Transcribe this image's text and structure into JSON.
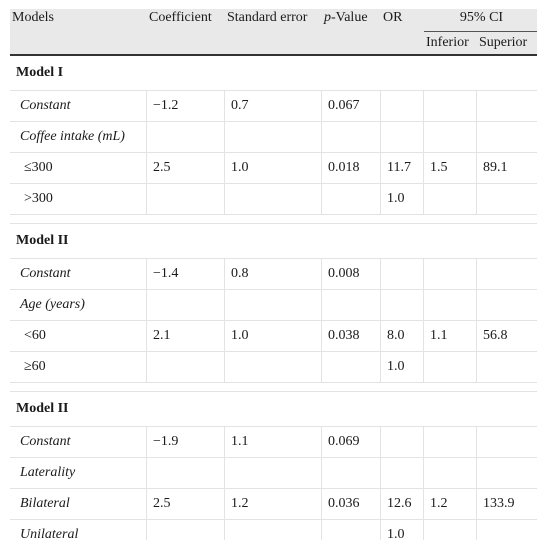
{
  "table": {
    "headers": {
      "models": "Models",
      "coefficient": "Coefficient",
      "std_error": "Standard error",
      "pvalue_p": "p",
      "pvalue_rest": "-Value",
      "or": "OR",
      "ci": "95% CI",
      "inferior": "Inferior",
      "superior": "Superior"
    },
    "rows": [
      {
        "type": "group",
        "label": "Model I"
      },
      {
        "type": "data",
        "style": "it",
        "cells": [
          "Constant",
          "−1.2",
          "0.7",
          "0.067",
          "",
          "",
          ""
        ]
      },
      {
        "type": "data",
        "style": "it",
        "cells": [
          "Coffee intake (mL)",
          "",
          "",
          "",
          "",
          "",
          ""
        ]
      },
      {
        "type": "data",
        "style": "ind",
        "cells": [
          "≤300",
          "2.5",
          "1.0",
          "0.018",
          "11.7",
          "1.5",
          "89.1"
        ]
      },
      {
        "type": "data",
        "style": "ind",
        "cells": [
          ">300",
          "",
          "",
          "",
          "1.0",
          "",
          ""
        ]
      },
      {
        "type": "spacer"
      },
      {
        "type": "group",
        "label": "Model II"
      },
      {
        "type": "data",
        "style": "it",
        "cells": [
          "Constant",
          "−1.4",
          "0.8",
          "0.008",
          "",
          "",
          ""
        ]
      },
      {
        "type": "data",
        "style": "it",
        "cells": [
          "Age (years)",
          "",
          "",
          "",
          "",
          "",
          ""
        ]
      },
      {
        "type": "data",
        "style": "ind",
        "cells": [
          "<60",
          "2.1",
          "1.0",
          "0.038",
          "8.0",
          "1.1",
          "56.8"
        ]
      },
      {
        "type": "data",
        "style": "ind",
        "cells": [
          "≥60",
          "",
          "",
          "",
          "1.0",
          "",
          ""
        ]
      },
      {
        "type": "spacer"
      },
      {
        "type": "group",
        "label": "Model II"
      },
      {
        "type": "data",
        "style": "it",
        "cells": [
          "Constant",
          "−1.9",
          "1.1",
          "0.069",
          "",
          "",
          ""
        ]
      },
      {
        "type": "data",
        "style": "it",
        "cells": [
          "Laterality",
          "",
          "",
          "",
          "",
          "",
          ""
        ]
      },
      {
        "type": "data",
        "style": "it",
        "cells": [
          "Bilateral",
          "2.5",
          "1.2",
          "0.036",
          "12.6",
          "1.2",
          "133.9"
        ]
      },
      {
        "type": "data",
        "style": "it",
        "cells": [
          "Unilateral",
          "",
          "",
          "",
          "1.0",
          "",
          ""
        ]
      }
    ]
  }
}
